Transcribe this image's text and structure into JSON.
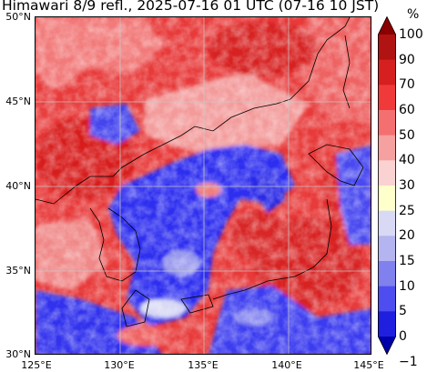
{
  "title": "Himawari 8/9 refl., 2025-07-16 01 UTC (07-16 10 JST)",
  "map": {
    "lon_range": [
      125,
      145
    ],
    "lat_range": [
      30,
      50
    ],
    "gridlines": true,
    "lat_labels": [
      "50°N",
      "45°N",
      "40°N",
      "35°N",
      "30°N"
    ],
    "lon_labels": [
      "125°E",
      "130°E",
      "135°E",
      "140°E",
      "145°E"
    ]
  },
  "colorbar": {
    "unit": "%",
    "tick_labels": [
      "100",
      "90",
      "70",
      "60",
      "50",
      "40",
      "30",
      "25",
      "20",
      "15",
      "10",
      "5",
      "0",
      "−1"
    ],
    "colors": [
      "#8b0000",
      "#b11212",
      "#d62020",
      "#f03a3a",
      "#f47070",
      "#f6a0a0",
      "#fbd2d2",
      "#ffffcc",
      "#d9d9f5",
      "#b4b4f0",
      "#8080ee",
      "#4d4df0",
      "#1f1fe0",
      "#0000a8"
    ]
  }
}
